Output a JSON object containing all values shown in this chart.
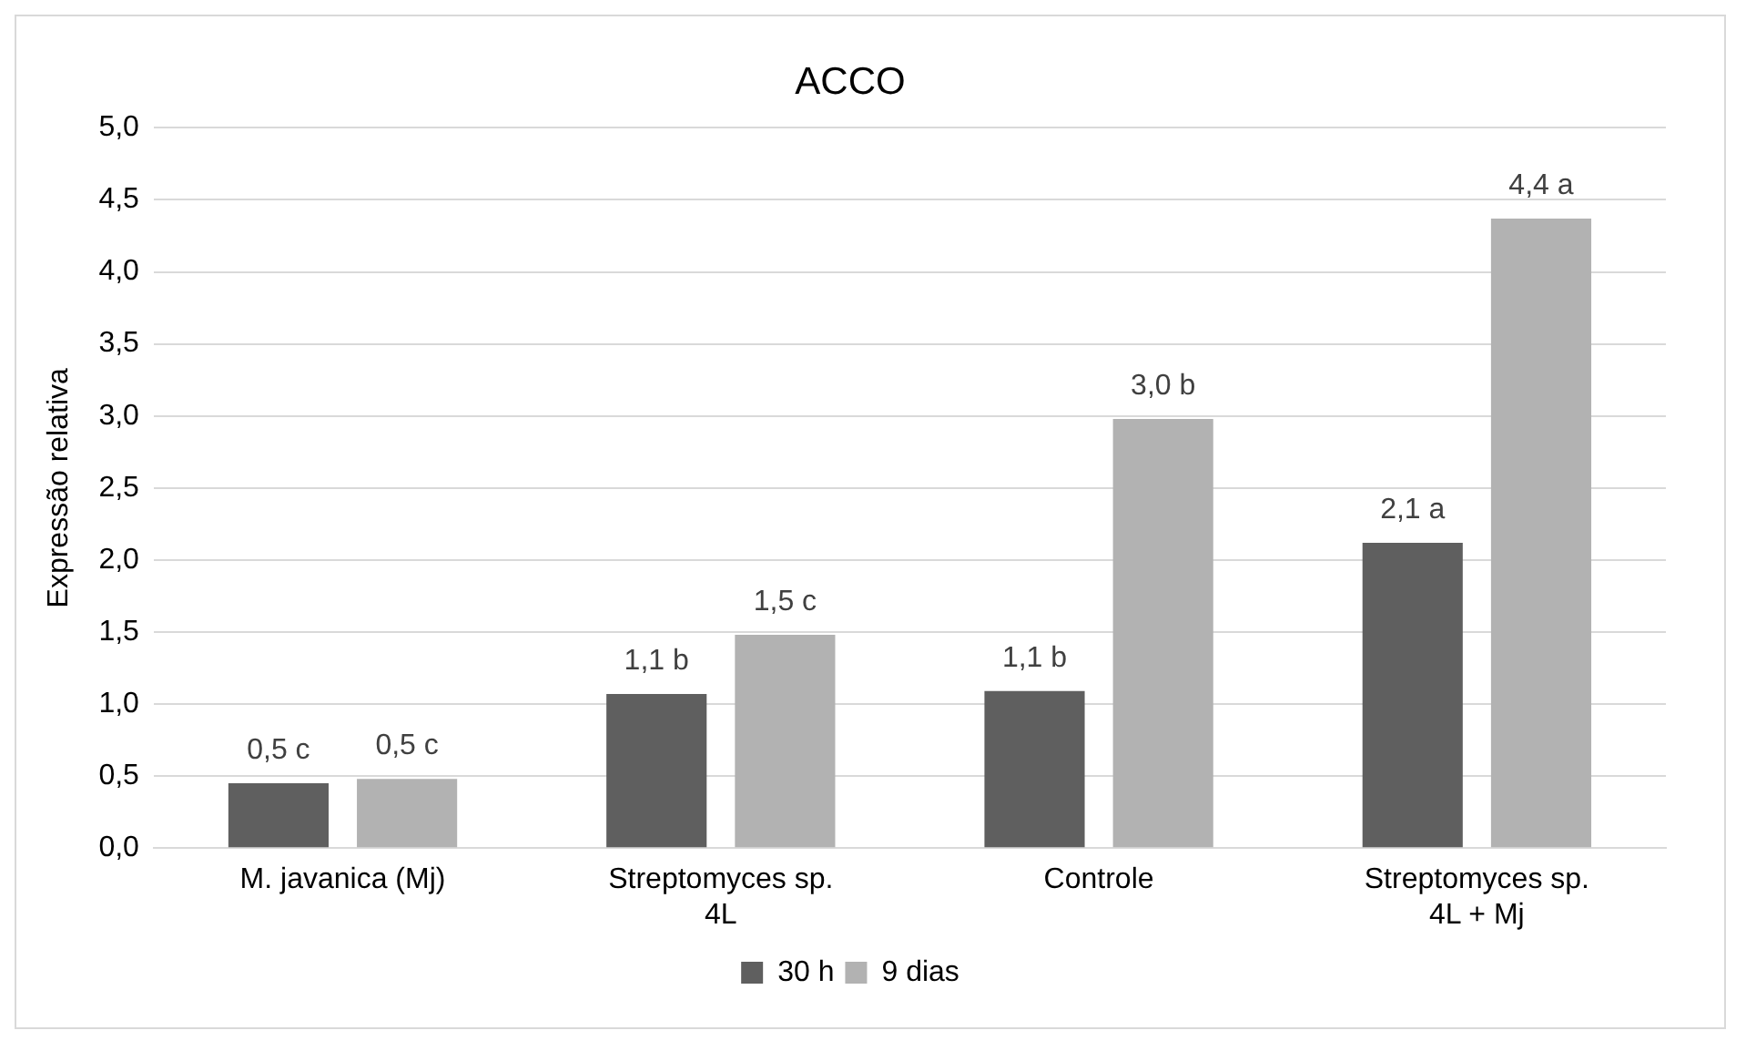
{
  "chart_data": {
    "type": "bar",
    "title": "ACCO",
    "ylabel": "Expressão relativa",
    "categories": [
      "M. javanica (Mj)",
      "Streptomyces sp. 4L",
      "Controle",
      "Streptomyces sp. 4L + Mj"
    ],
    "series": [
      {
        "name": "30 h",
        "color": "#5f5f5f",
        "values": [
          0.45,
          1.07,
          1.09,
          2.12
        ],
        "value_labels": [
          "0,5 c",
          "1,1 b",
          "1,1 b",
          "2,1 a"
        ]
      },
      {
        "name": "9 dias",
        "color": "#b2b2b2",
        "values": [
          0.48,
          1.48,
          2.98,
          4.37
        ],
        "value_labels": [
          "0,5 c",
          "1,5 c",
          "3,0 b",
          "4,4 a"
        ]
      }
    ],
    "ylim": [
      0,
      5
    ],
    "yticks": [
      {
        "value": 0,
        "label": "0,0"
      },
      {
        "value": 0.5,
        "label": "0,5"
      },
      {
        "value": 1,
        "label": "1,0"
      },
      {
        "value": 1.5,
        "label": "1,5"
      },
      {
        "value": 2,
        "label": "2,0"
      },
      {
        "value": 2.5,
        "label": "2,5"
      },
      {
        "value": 3,
        "label": "3,0"
      },
      {
        "value": 3.5,
        "label": "3,5"
      },
      {
        "value": 4,
        "label": "4,0"
      },
      {
        "value": 4.5,
        "label": "4,5"
      },
      {
        "value": 5,
        "label": "5,0"
      }
    ],
    "grid": "y",
    "legend": "bottom"
  }
}
